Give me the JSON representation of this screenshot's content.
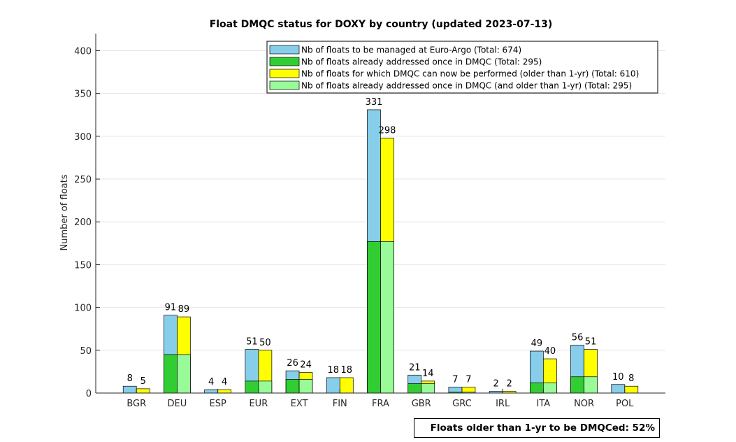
{
  "chart_data": {
    "type": "bar",
    "title": "Float DMQC status for DOXY by country (updated 2023-07-13)",
    "ylabel": "Number of floats",
    "xlabel": "",
    "ylim": [
      0,
      420
    ],
    "yticks": [
      0,
      50,
      100,
      150,
      200,
      250,
      300,
      350,
      400
    ],
    "grid": true,
    "legend_placement": "top-center",
    "categories": [
      "BGR",
      "DEU",
      "ESP",
      "EUR",
      "EXT",
      "FIN",
      "FRA",
      "GBR",
      "GRC",
      "IRL",
      "ITA",
      "NOR",
      "POL"
    ],
    "series": [
      {
        "name": "Nb of floats to be managed at Euro-Argo (Total: 674)",
        "color": "#87CEEB",
        "values": [
          8,
          91,
          4,
          51,
          26,
          18,
          331,
          21,
          7,
          2,
          49,
          56,
          10
        ]
      },
      {
        "name": "Nb of floats already addressed once in DMQC (Total: 295)",
        "color": "#32CD32",
        "values": [
          0,
          45,
          0,
          14,
          16,
          0,
          177,
          11,
          1,
          0,
          12,
          19,
          0
        ]
      },
      {
        "name": "Nb of floats for which DMQC can now be performed (older than 1-yr) (Total: 610)",
        "color": "#FFFF00",
        "values": [
          5,
          89,
          4,
          50,
          24,
          18,
          298,
          14,
          7,
          2,
          40,
          51,
          8
        ]
      },
      {
        "name": "Nb of floats already addressed once in DMQC (and older than 1-yr) (Total: 295)",
        "color": "#98FB98",
        "values": [
          0,
          45,
          0,
          14,
          16,
          0,
          177,
          11,
          1,
          0,
          12,
          19,
          0
        ]
      }
    ],
    "annotation": "Floats older than 1-yr to be DMQCed: 52%"
  }
}
